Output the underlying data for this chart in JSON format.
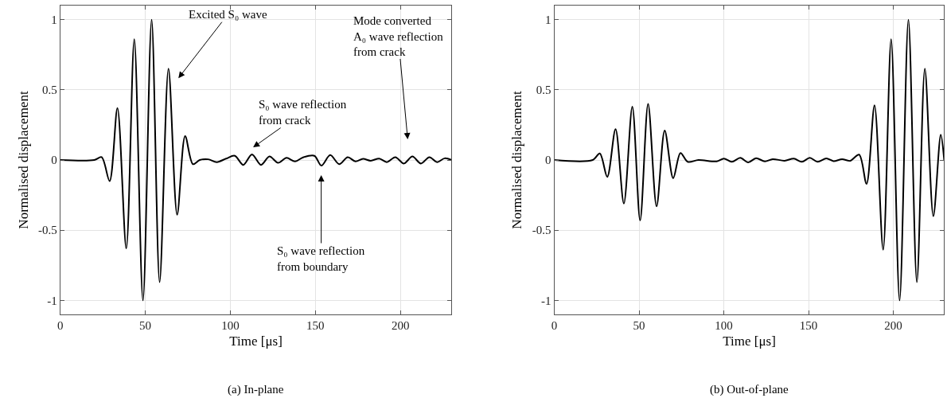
{
  "chart_data": [
    {
      "type": "line",
      "title": "(a) In-plane",
      "xlabel": "Time [μs]",
      "ylabel": "Normalised displacement",
      "x": [
        0,
        20,
        24.3,
        29,
        33.6,
        38.8,
        43.5,
        48.6,
        53.7,
        58.4,
        63.6,
        68.7,
        73.4,
        78,
        82,
        87,
        92,
        97.5,
        102.6,
        107.6,
        112.7,
        118,
        123,
        128,
        133,
        138,
        143,
        149.4,
        153.5,
        158.7,
        164,
        169,
        173.5,
        178,
        182.5,
        187.5,
        192,
        197,
        202,
        207,
        212,
        217,
        221.5,
        226,
        230
      ],
      "series": [
        {
          "color": "#000000",
          "values": [
            0,
            0,
            0.02,
            -0.15,
            0.37,
            -0.63,
            0.86,
            -1.0,
            1.0,
            -0.87,
            0.65,
            -0.39,
            0.17,
            -0.03,
            0,
            0.005,
            -0.015,
            0.01,
            0.03,
            -0.035,
            0.04,
            -0.035,
            0.025,
            -0.02,
            0.015,
            -0.01,
            0.02,
            0.03,
            -0.04,
            0.035,
            -0.03,
            0.02,
            -0.01,
            0.008,
            -0.005,
            0.01,
            -0.015,
            0.02,
            -0.025,
            0.025,
            -0.025,
            0.02,
            -0.015,
            0.012,
            0
          ]
        }
      ],
      "xlim": [
        0,
        230
      ],
      "xticks": [
        0,
        50,
        100,
        150,
        200
      ],
      "ylim": [
        -1.1,
        1.1
      ],
      "yticks": [
        -1,
        -0.5,
        0,
        0.5,
        1
      ],
      "grid": true,
      "annotations": [
        "Excited S₀ wave",
        "S₀ wave reflection\nfrom crack",
        "S₀ wave reflection\nfrom boundary",
        "Mode converted\nA₀ wave reflection\nfrom crack"
      ]
    },
    {
      "type": "line",
      "title": "(b) Out-of-plane",
      "xlabel": "Time [μs]",
      "ylabel": "Normalised displacement",
      "x": [
        0,
        22.6,
        26.8,
        31.2,
        36.1,
        41,
        46,
        50.6,
        55.3,
        60.3,
        65.1,
        70.1,
        74.4,
        78.7,
        85,
        95.8,
        100,
        104.7,
        109.7,
        114.4,
        119,
        124.2,
        128.8,
        135.8,
        141.3,
        146,
        150.7,
        155.3,
        160.5,
        164.7,
        169.8,
        174.5,
        179.8,
        184.2,
        188.9,
        194,
        198.7,
        203.7,
        208.9,
        213.9,
        218.6,
        223.6,
        228,
        230
      ],
      "series": [
        {
          "color": "#000000",
          "values": [
            0,
            0,
            0.047,
            -0.12,
            0.22,
            -0.31,
            0.38,
            -0.43,
            0.4,
            -0.33,
            0.21,
            -0.13,
            0.05,
            -0.013,
            0,
            -0.01,
            0.01,
            -0.013,
            0.015,
            -0.017,
            0.013,
            -0.01,
            0.006,
            -0.005,
            0.01,
            -0.013,
            0.015,
            -0.013,
            0.011,
            -0.008,
            0.006,
            -0.006,
            0.038,
            -0.17,
            0.39,
            -0.64,
            0.86,
            -1.0,
            1.0,
            -0.87,
            0.65,
            -0.4,
            0.18,
            0
          ]
        }
      ],
      "xlim": [
        0,
        230
      ],
      "xticks": [
        0,
        50,
        100,
        150,
        200
      ],
      "ylim": [
        -1.1,
        1.1
      ],
      "yticks": [
        -1,
        -0.5,
        0,
        0.5,
        1
      ],
      "grid": true
    }
  ]
}
